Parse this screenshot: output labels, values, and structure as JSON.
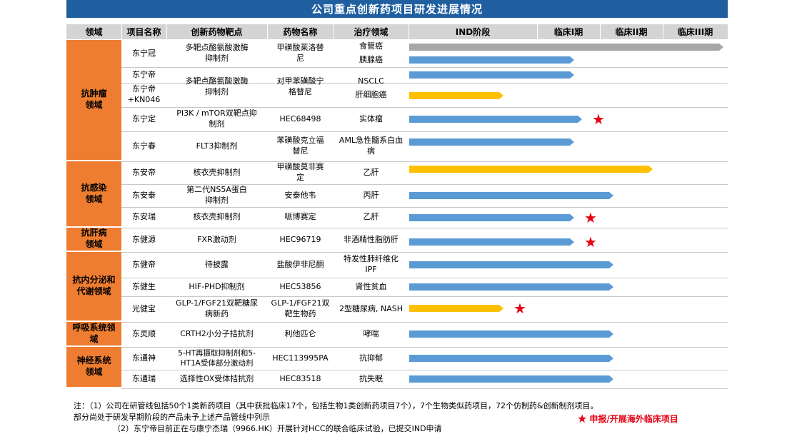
{
  "title": "公司重点创新药项目研发进展情况",
  "headers": {
    "domain": "领域",
    "project": "项目名称",
    "target": "创新药物靶点",
    "drug": "药物名称",
    "indication": "治疗领域",
    "ind": "IND阶段",
    "p1": "临床I期",
    "p2": "临床II期",
    "p3": "临床III期"
  },
  "domains": [
    {
      "label": "抗肿瘤\n领域"
    },
    {
      "label": "抗感染\n领域"
    },
    {
      "label": "抗肝病\n领域"
    },
    {
      "label": "抗内分泌和\n代谢领域"
    },
    {
      "label": "呼吸系统领\n域"
    },
    {
      "label": "神经系统\n领域"
    }
  ],
  "projects": [
    {
      "name": "东宁冠",
      "target": "多靶点酪氨酸激酶\n抑制剂",
      "drug": "甲磺酸莱洛替\n尼",
      "indication": "食管癌"
    },
    {
      "name": "",
      "target": "",
      "drug": "",
      "indication": "胰腺癌"
    },
    {
      "name": "东宁帝",
      "target": "多靶点酪氨酸激酶\n抑制剂",
      "drug": "对甲苯磺酸宁\n格替尼",
      "indication": "NSCLC"
    },
    {
      "name": "东宁帝\n+KN046",
      "target": "",
      "drug": "",
      "indication": "肝细胞癌"
    },
    {
      "name": "东宁定",
      "target": "PI3K / mTOR双靶点抑\n制剂",
      "drug": "HEC68498",
      "indication": "实体瘤"
    },
    {
      "name": "东宁春",
      "target": "FLT3抑制剂",
      "drug": "苯磺酸克立福\n替尼",
      "indication": "AML急性髓系白血\n病"
    },
    {
      "name": "东安帝",
      "target": "核衣壳抑制剂",
      "drug": "甲磺酸莫非赛\n定",
      "indication": "乙肝"
    },
    {
      "name": "东安泰",
      "target": "第二代NS5A蛋白\n抑制剂",
      "drug": "安泰他韦",
      "indication": "丙肝"
    },
    {
      "name": "东安瑞",
      "target": "核衣壳抑制剂",
      "drug": "哌博赛定",
      "indication": "乙肝"
    },
    {
      "name": "东健源",
      "target": "FXR激动剂",
      "drug": "HEC96719",
      "indication": "非酒精性脂肪肝"
    },
    {
      "name": "东健帝",
      "target": "待披露",
      "drug": "盐酸伊非尼酮",
      "indication": "特发性肺纤维化\nIPF"
    },
    {
      "name": "东健生",
      "target": "HIF-PHD抑制剂",
      "drug": "HEC53856",
      "indication": "肾性贫血"
    },
    {
      "name": "光健宝",
      "target": "GLP-1/FGF21双靶糖尿\n病新药",
      "drug": "GLP-1/FGF21双\n靶生物药",
      "indication": "2型糖尿病, NASH"
    },
    {
      "name": "东灵顺",
      "target": "CRTH2小分子拮抗剂",
      "drug": "利他匹仑",
      "indication": "哮喘"
    },
    {
      "name": "东通神",
      "target": "5-HT再摄取抑制剂和5-\nHT1A受体部分激动剂",
      "drug": "HEC113995PA",
      "indication": "抗抑郁"
    },
    {
      "name": "东通瑞",
      "target": "选择性OX受体拮抗剂",
      "drug": "HEC83518",
      "indication": "抗失眠"
    }
  ],
  "chart_data": {
    "type": "bar",
    "orientation": "horizontal",
    "stages": [
      "IND阶段",
      "临床I期",
      "临床II期",
      "临床III期"
    ],
    "categories": [
      "食管癌",
      "胰腺癌",
      "NSCLC",
      "肝细胞癌",
      "实体瘤",
      "AML急性髓系白血病",
      "乙肝",
      "丙肝",
      "乙肝",
      "非酒精性脂肪肝",
      "特发性肺纤维化IPF",
      "肾性贫血",
      "2型糖尿病, NASH",
      "哮喘",
      "抗抑郁",
      "抗失眠"
    ],
    "progress_stage_units": [
      4.0,
      2.1,
      2.1,
      1.2,
      2.2,
      2.1,
      3.1,
      2.6,
      2.1,
      2.1,
      2.6,
      2.6,
      1.2,
      2.6,
      2.6,
      2.6
    ],
    "bar_colors": [
      "#a6a6a6",
      "#5b9bd5",
      "#5b9bd5",
      "#ffc000",
      "#5b9bd5",
      "#5b9bd5",
      "#ffc000",
      "#5b9bd5",
      "#5b9bd5",
      "#5b9bd5",
      "#5b9bd5",
      "#5b9bd5",
      "#ffc000",
      "#5b9bd5",
      "#5b9bd5",
      "#5b9bd5"
    ],
    "star_rows": [
      4,
      8,
      9,
      12
    ],
    "star_color": "#e60012",
    "xlim": [
      0,
      4
    ]
  },
  "notes": {
    "line1": "注：（1）公司在研管线包括50个1类新药项目（其中获批临床17个，包括生物1类创新药项目7个），7个生物类似药项目，72个仿制药&创新制剂项目。",
    "line2": "部分尚处于研发早期阶段的产品未予上述产品管线中列示",
    "line3": "（2）东宁帝目前正在与康宁杰瑞（9966.HK）开展针对HCC的联合临床试验，已提交IND申请"
  },
  "legend": {
    "label": "申报/开展海外临床项目",
    "color": "#e60012"
  }
}
